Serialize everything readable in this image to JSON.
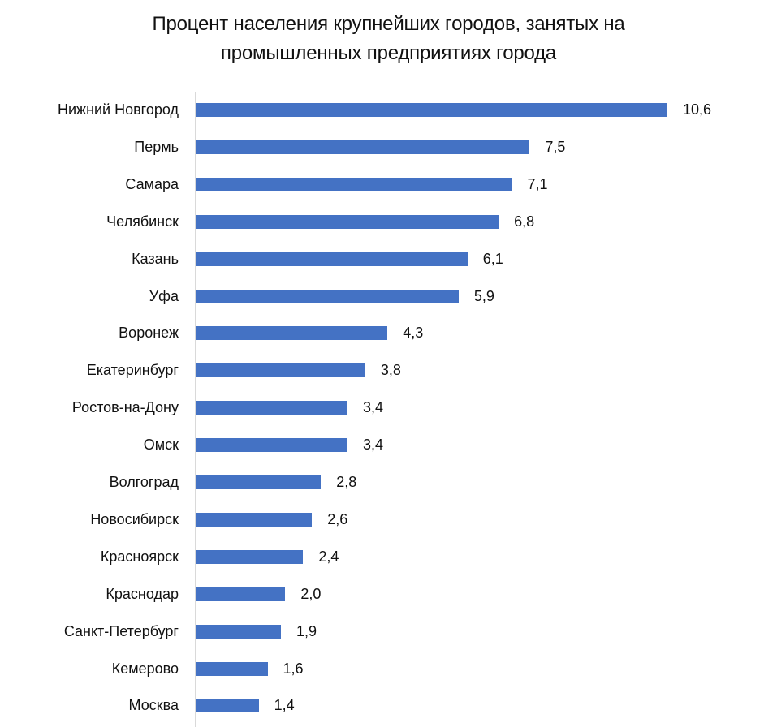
{
  "chart_data": {
    "type": "bar",
    "orientation": "horizontal",
    "title": "Процент населения крупнейших городов, занятых на промышленных предприятиях города",
    "title_lines": [
      "Процент населения крупнейших городов, занятых на",
      "промышленных предприятиях города"
    ],
    "xlabel": "",
    "ylabel": "",
    "grid": false,
    "legend": null,
    "bar_color": "#4472c4",
    "axis_color": "#d9d9d9",
    "categories": [
      "Нижний Новгород",
      "Пермь",
      "Самара",
      "Челябинск",
      "Казань",
      "Уфа",
      "Воронеж",
      "Екатеринбург",
      "Ростов-на-Дону",
      "Омск",
      "Волгоград",
      "Новосибирск",
      "Красноярск",
      "Краснодар",
      "Санкт-Петербург",
      "Кемерово",
      "Москва"
    ],
    "values": [
      10.6,
      7.5,
      7.1,
      6.8,
      6.1,
      5.9,
      4.3,
      3.8,
      3.4,
      3.4,
      2.8,
      2.6,
      2.4,
      2.0,
      1.9,
      1.6,
      1.4
    ],
    "value_labels": [
      "10,6",
      "7,5",
      "7,1",
      "6,8",
      "6,1",
      "5,9",
      "4,3",
      "3,8",
      "3,4",
      "3,4",
      "2,8",
      "2,6",
      "2,4",
      "2,0",
      "1,9",
      "1,6",
      "1,4"
    ],
    "xlim": [
      0,
      10.6
    ]
  }
}
